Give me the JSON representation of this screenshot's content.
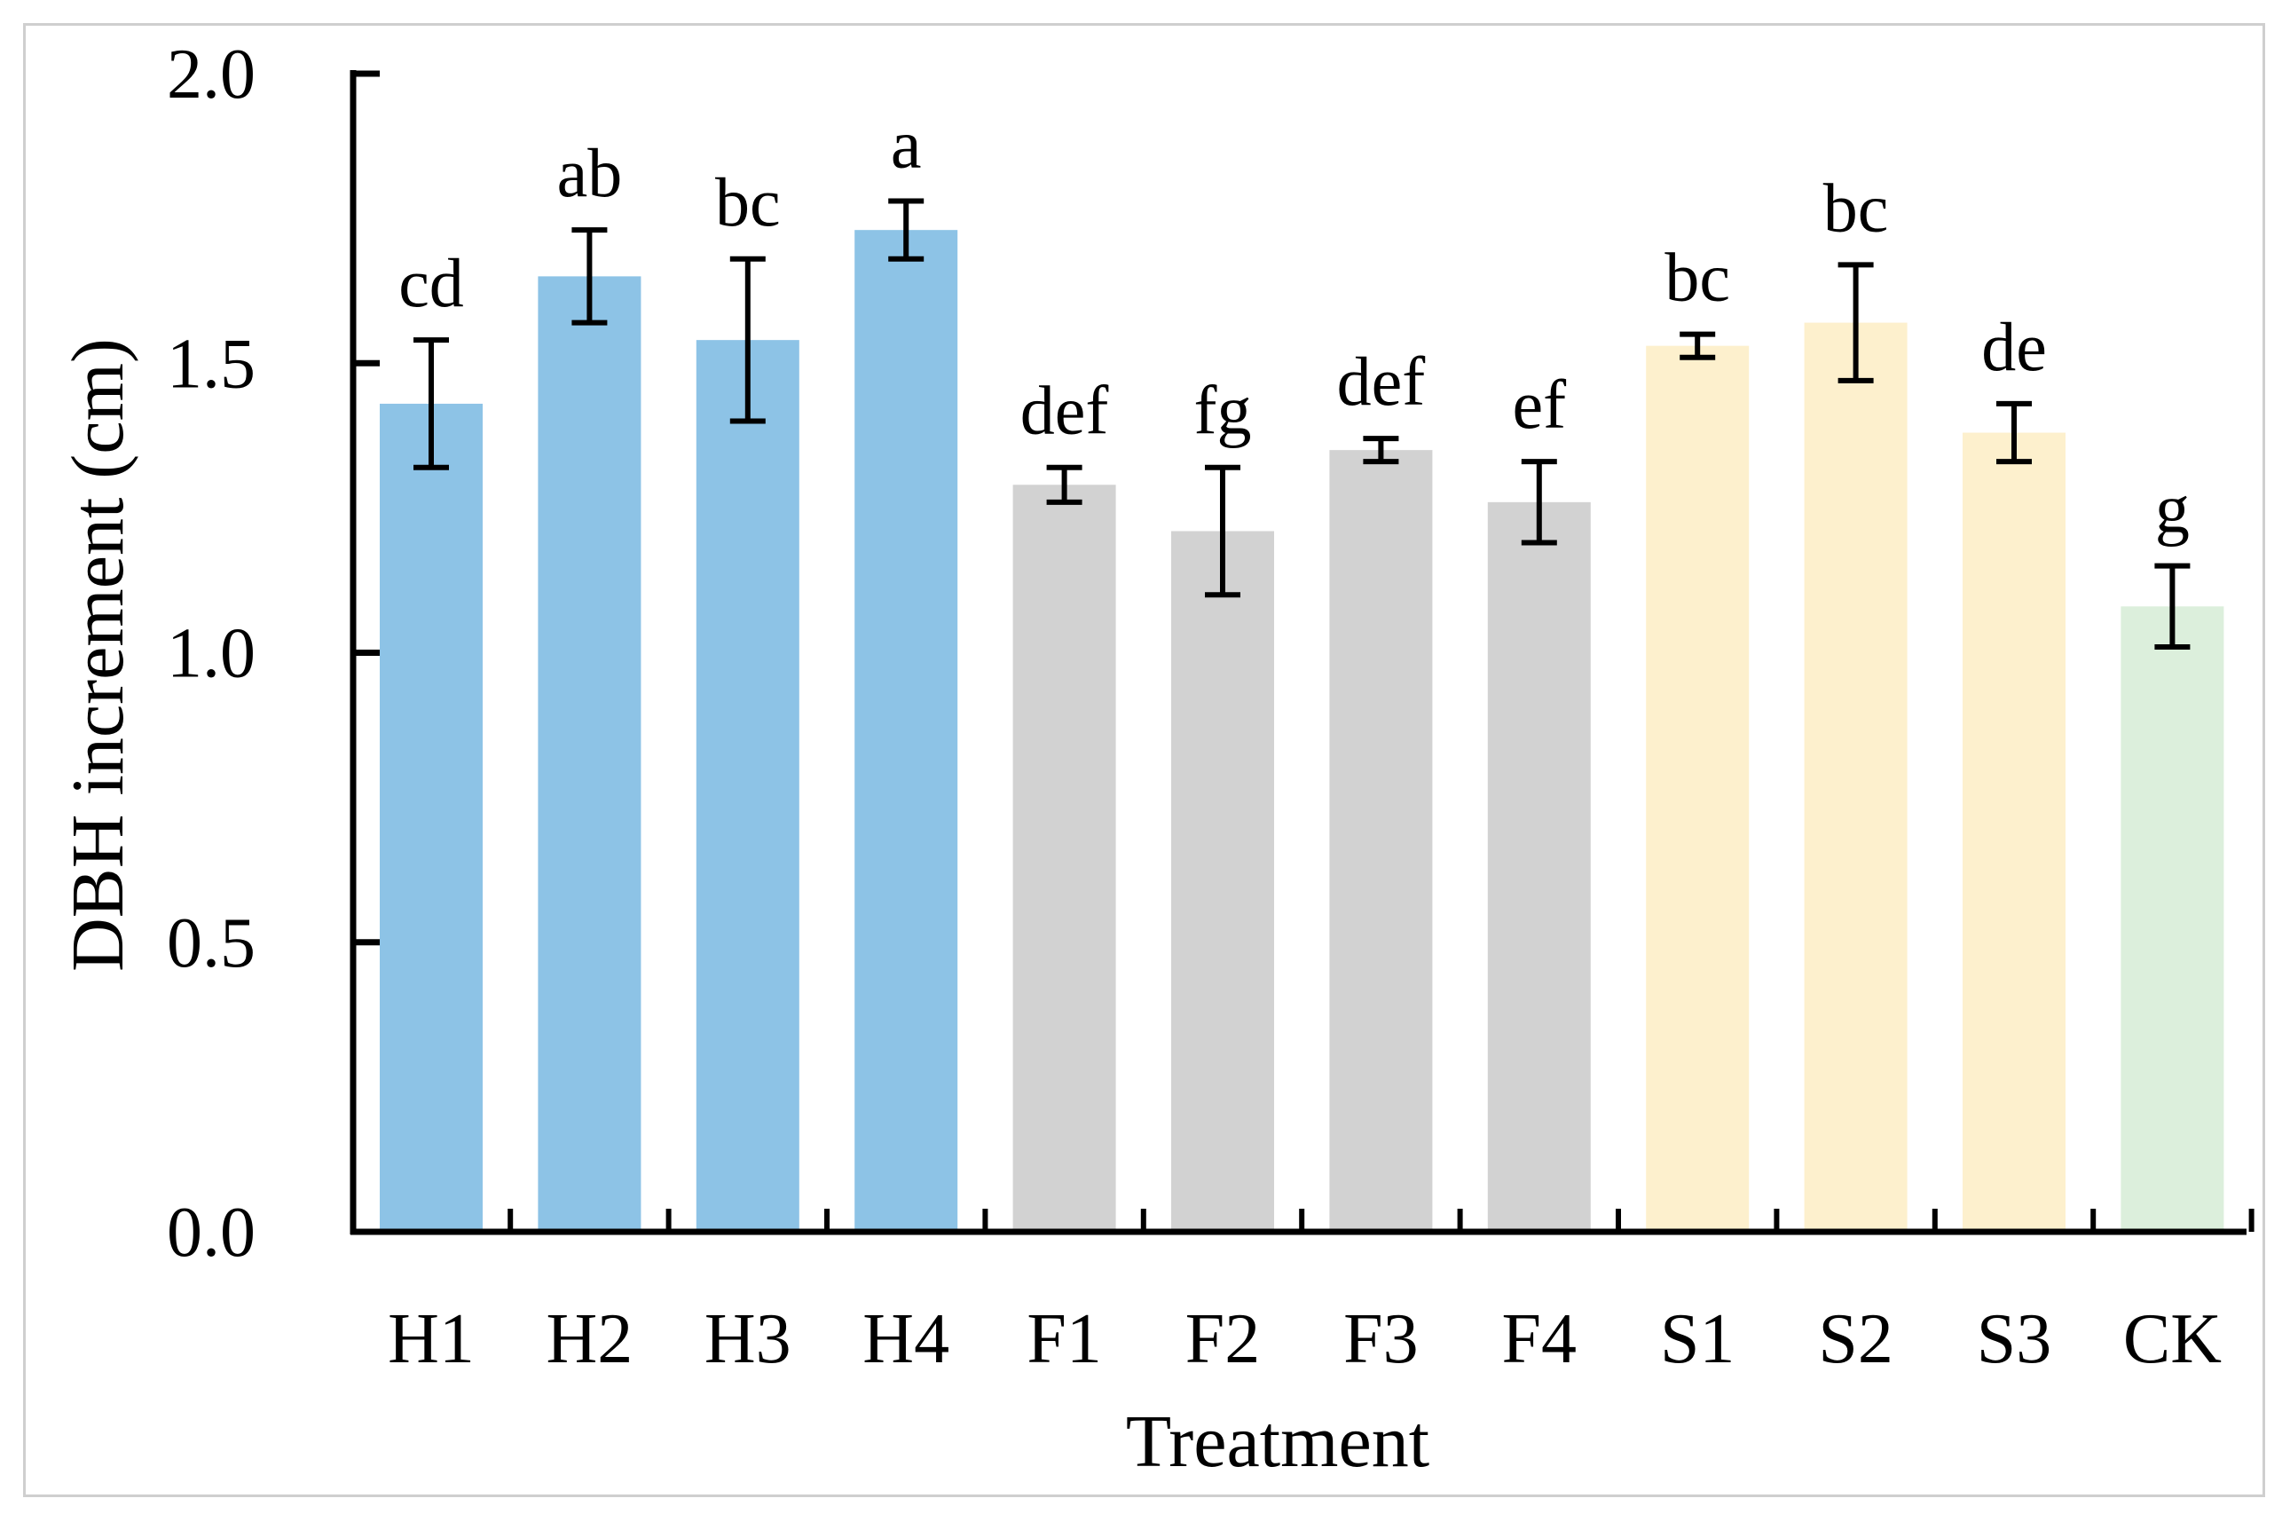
{
  "chart_data": {
    "type": "bar",
    "title": "",
    "xlabel": "Treatment",
    "ylabel": "DBH increment  (cm)",
    "ylim": [
      0,
      2.0
    ],
    "yticks": [
      "0.0",
      "0.5",
      "1.0",
      "1.5",
      "2.0"
    ],
    "grid": false,
    "categories": [
      "H1",
      "H2",
      "H3",
      "H4",
      "F1",
      "F2",
      "F3",
      "F4",
      "S1",
      "S2",
      "S3",
      "CK"
    ],
    "values": [
      1.43,
      1.65,
      1.54,
      1.73,
      1.29,
      1.21,
      1.35,
      1.26,
      1.53,
      1.57,
      1.38,
      1.08
    ],
    "errors": [
      0.11,
      0.08,
      0.14,
      0.05,
      0.03,
      0.11,
      0.02,
      0.07,
      0.02,
      0.1,
      0.05,
      0.07
    ],
    "significance": [
      "cd",
      "ab",
      "bc",
      "a",
      "def",
      "fg",
      "def",
      "ef",
      "bc",
      "bc",
      "de",
      "g"
    ],
    "groups": [
      "H",
      "H",
      "H",
      "H",
      "F",
      "F",
      "F",
      "F",
      "S",
      "S",
      "S",
      "CK"
    ],
    "colors": {
      "H": "#8dc3e6",
      "F": "#d2d2d2",
      "S": "#fdf0cd",
      "CK": "#dcefdc",
      "axis": "#000000",
      "frame": "#cfcfcf"
    }
  }
}
